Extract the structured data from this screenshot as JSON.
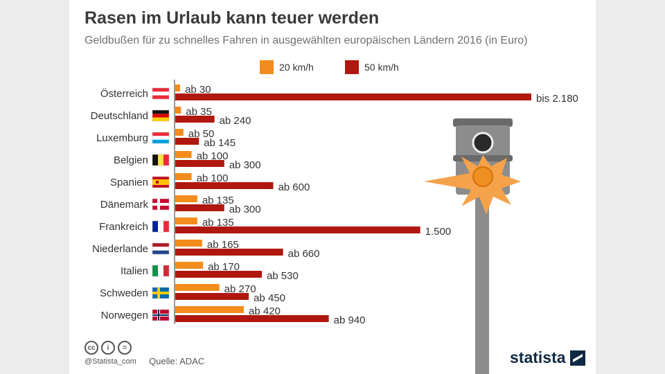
{
  "header": {
    "title": "Rasen im Urlaub kann teuer werden",
    "subtitle": "Geldbußen für zu schnelles Fahren in ausgewählten europäischen Ländern 2016 (in Euro)"
  },
  "legend": [
    {
      "label": "20 km/h",
      "color": "#f28c1c"
    },
    {
      "label": "50 km/h",
      "color": "#b0170e"
    }
  ],
  "chart_data": {
    "type": "bar",
    "orientation": "horizontal",
    "categories": [
      "Österreich",
      "Deutschland",
      "Luxemburg",
      "Belgien",
      "Spanien",
      "Dänemark",
      "Frankreich",
      "Niederlande",
      "Italien",
      "Schweden",
      "Norwegen"
    ],
    "series": [
      {
        "name": "20 km/h",
        "color": "#f28c1c",
        "values": [
          30,
          35,
          50,
          100,
          100,
          135,
          135,
          165,
          170,
          270,
          420
        ],
        "labels": [
          "ab 30",
          "ab 35",
          "ab 50",
          "ab 100",
          "ab 100",
          "ab 135",
          "ab 135",
          "ab 165",
          "ab 170",
          "ab 270",
          "ab 420"
        ]
      },
      {
        "name": "50 km/h",
        "color": "#b0170e",
        "values": [
          2180,
          240,
          145,
          300,
          600,
          300,
          1500,
          660,
          530,
          450,
          940
        ],
        "labels": [
          "bis 2.180",
          "ab 240",
          "ab 145",
          "ab 300",
          "ab 600",
          "ab 300",
          "1.500",
          "ab 660",
          "ab 530",
          "ab 450",
          "ab 940"
        ]
      }
    ],
    "flags": [
      "austria",
      "germany",
      "luxembourg",
      "belgium",
      "spain",
      "denmark",
      "france",
      "netherlands",
      "italy",
      "sweden",
      "norway"
    ],
    "title": "Rasen im Urlaub kann teuer werden",
    "grid": false,
    "legend_position": "top"
  },
  "footer": {
    "handle": "@Statista_com",
    "source": "Quelle: ADAC",
    "brand": "statista",
    "cc_icons": [
      "cc-icon",
      "by-icon",
      "nd-icon"
    ]
  }
}
